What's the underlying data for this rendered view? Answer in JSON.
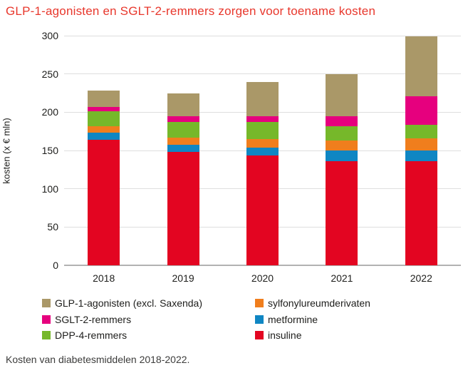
{
  "page": {
    "title": "GLP-1-agonisten en SGLT-2-remmers zorgen voor toename kosten",
    "title_color": "#e8372c",
    "caption": "Kosten van diabetesmiddelen 2018-2022."
  },
  "chart_data": {
    "type": "bar",
    "stacked": true,
    "title": "GLP-1-agonisten en SGLT-2-remmers zorgen voor toename kosten",
    "xlabel": "",
    "ylabel": "kosten (x € mln)",
    "categories": [
      "2018",
      "2019",
      "2020",
      "2021",
      "2022"
    ],
    "ylim": [
      0,
      300
    ],
    "yticks": [
      0,
      50,
      100,
      150,
      200,
      250,
      300
    ],
    "grid": true,
    "legend_position": "bottom",
    "series": [
      {
        "name": "insuline",
        "color": "#e30521",
        "values": [
          164,
          148,
          143,
          136,
          136
        ]
      },
      {
        "name": "metformine",
        "color": "#0f86c3",
        "values": [
          9,
          9,
          11,
          14,
          14
        ]
      },
      {
        "name": "sylfonylureumderivaten",
        "color": "#f07e1d",
        "values": [
          9,
          10,
          11,
          13,
          16
        ]
      },
      {
        "name": "DPP-4-remmers",
        "color": "#76b82a",
        "values": [
          19,
          20,
          22,
          19,
          18
        ]
      },
      {
        "name": "SGLT-2-remmers",
        "color": "#e6007e",
        "values": [
          6,
          8,
          8,
          13,
          37
        ]
      },
      {
        "name": "GLP-1-agonisten (excl. Saxenda)",
        "color": "#aa9868",
        "values": [
          21,
          30,
          44,
          55,
          78
        ]
      }
    ],
    "totals": [
      228,
      225,
      239,
      250,
      299
    ],
    "legend_columns": [
      [
        "GLP-1-agonisten (excl. Saxenda)",
        "SGLT-2-remmers",
        "DPP-4-remmers"
      ],
      [
        "sylfonylureumderivaten",
        "metformine",
        "insuline"
      ]
    ]
  }
}
